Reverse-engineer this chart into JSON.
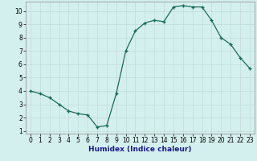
{
  "x": [
    0,
    1,
    2,
    3,
    4,
    5,
    6,
    7,
    8,
    9,
    10,
    11,
    12,
    13,
    14,
    15,
    16,
    17,
    18,
    19,
    20,
    21,
    22,
    23
  ],
  "y": [
    4.0,
    3.8,
    3.5,
    3.0,
    2.5,
    2.3,
    2.2,
    1.3,
    1.4,
    3.8,
    7.0,
    8.5,
    9.1,
    9.3,
    9.2,
    10.3,
    10.4,
    10.3,
    10.3,
    9.3,
    8.0,
    7.5,
    6.5,
    5.7
  ],
  "line_color": "#1a6b5a",
  "marker": "+",
  "marker_size": 3.5,
  "marker_linewidth": 1.0,
  "bg_color": "#d4f0ee",
  "grid_color": "#c0dbd8",
  "xlabel": "Humidex (Indice chaleur)",
  "xlim": [
    -0.5,
    23.5
  ],
  "ylim": [
    0.8,
    10.7
  ],
  "yticks": [
    1,
    2,
    3,
    4,
    5,
    6,
    7,
    8,
    9,
    10
  ],
  "xticks": [
    0,
    1,
    2,
    3,
    4,
    5,
    6,
    7,
    8,
    9,
    10,
    11,
    12,
    13,
    14,
    15,
    16,
    17,
    18,
    19,
    20,
    21,
    22,
    23
  ],
  "xlabel_color": "#1a1a8c",
  "xlabel_fontsize": 6.5,
  "tick_fontsize": 5.5,
  "grid_linewidth": 0.5,
  "line_linewidth": 0.9,
  "spine_color": "#888888"
}
